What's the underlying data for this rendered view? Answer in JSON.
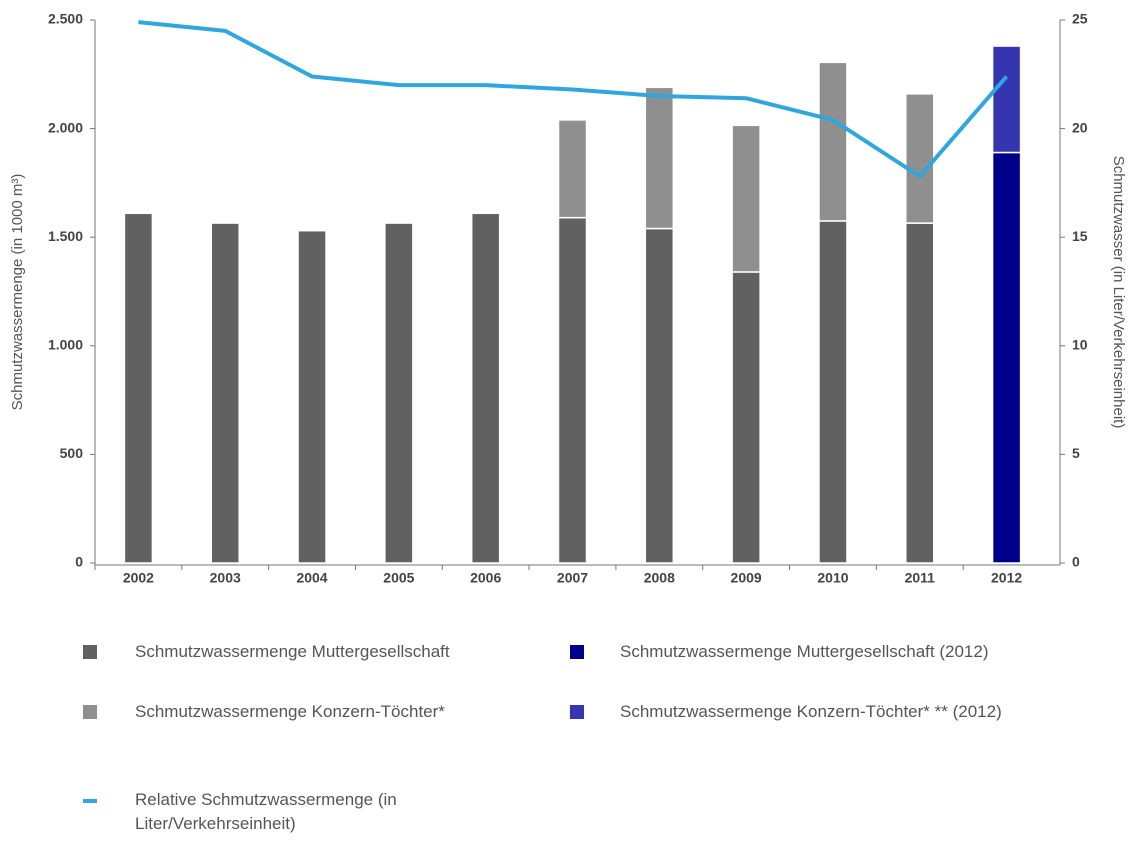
{
  "chart_data": {
    "type": "bar",
    "y_label": "Schmutzwassermenge (in 1000 m³)",
    "y2_label": "Schmutzwasser (in Liter/Verkehrseinheit)",
    "categories": [
      "2002",
      "2003",
      "2004",
      "2005",
      "2006",
      "2007",
      "2008",
      "2009",
      "2010",
      "2011",
      "2012"
    ],
    "stacked": true,
    "ylim": [
      0,
      2500
    ],
    "yticks": [
      0,
      500,
      {
        "value": 1000,
        "label": "1.000"
      },
      {
        "value": 1500,
        "label": "1.500"
      },
      {
        "value": 2000,
        "label": "2.000"
      },
      {
        "value": 2500,
        "label": "2.500"
      }
    ],
    "y2lim": [
      0,
      25
    ],
    "y2ticks": [
      0,
      5,
      10,
      15,
      20,
      25
    ],
    "series": [
      {
        "name": "Schmutzwassermenge Muttergesellschaft",
        "color": "#616161",
        "values": [
          1610,
          1565,
          1530,
          1565,
          1610,
          1590,
          1540,
          1340,
          1575,
          1565,
          null
        ]
      },
      {
        "name": "Schmutzwassermenge Konzern-Töchter*",
        "color": "#8f8f8f",
        "values": [
          null,
          null,
          null,
          null,
          null,
          450,
          650,
          675,
          730,
          595,
          null
        ]
      },
      {
        "name": "Schmutzwassermenge Muttergesellschaft (2012)",
        "color": "#00008b",
        "values": [
          null,
          null,
          null,
          null,
          null,
          null,
          null,
          null,
          null,
          null,
          1890
        ]
      },
      {
        "name": "Schmutzwassermenge Konzern-Töchter* ** (2012)",
        "color": "#3535b0",
        "values": [
          null,
          null,
          null,
          null,
          null,
          null,
          null,
          null,
          null,
          null,
          490
        ]
      },
      {
        "name": "Relative Schmutzwassermenge (in Liter/Verkehrseinheit)",
        "type": "line",
        "axis": "y2",
        "color": "#2fa6de",
        "values": [
          24.9,
          24.5,
          22.4,
          22.0,
          22.0,
          21.8,
          21.5,
          21.4,
          20.4,
          17.8,
          22.4
        ]
      }
    ]
  }
}
